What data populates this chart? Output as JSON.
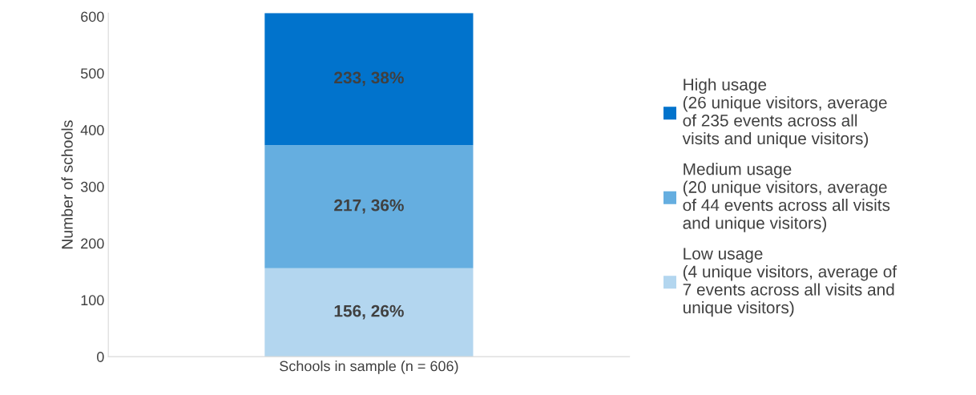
{
  "chart_data": {
    "type": "bar",
    "stacked": true,
    "ylabel": "Number of schools",
    "categories": [
      "Schools in sample (n = 606)"
    ],
    "series": [
      {
        "name": "Low usage\n(4 unique visitors, average of\n7 events across all visits and\nunique visitors)",
        "color": "#b3d6ef",
        "values": [
          156
        ],
        "value_labels": [
          "156, 26%"
        ]
      },
      {
        "name": "Medium usage\n(20 unique visitors, average\nof 44 events across all visits\nand unique visitors)",
        "color": "#65aee0",
        "values": [
          217
        ],
        "value_labels": [
          "217, 36%"
        ]
      },
      {
        "name": "High usage\n(26 unique visitors, average\nof 235 events across all\nvisits and unique visitors)",
        "color": "#0173cc",
        "values": [
          233
        ],
        "value_labels": [
          "233, 38%"
        ]
      }
    ],
    "ylim": [
      0,
      606
    ],
    "yticks": [
      0,
      100,
      200,
      300,
      400,
      500,
      600
    ],
    "grid": false,
    "legend": "right"
  }
}
